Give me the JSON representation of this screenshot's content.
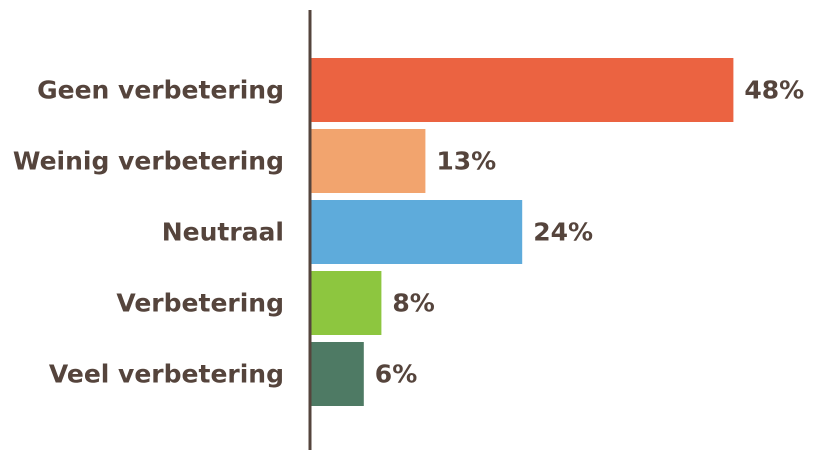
{
  "chart_data": {
    "type": "bar",
    "orientation": "horizontal",
    "categories": [
      "Geen verbetering",
      "Weinig verbetering",
      "Neutraal",
      "Verbetering",
      "Veel verbetering"
    ],
    "values": [
      48,
      13,
      24,
      8,
      6
    ],
    "value_labels": [
      "48%",
      "13%",
      "24%",
      "8%",
      "6%"
    ],
    "colors": [
      "#eb6341",
      "#f2a46e",
      "#5eabdb",
      "#8dc63f",
      "#4e7a64"
    ],
    "axis_color": "#55443c",
    "text_color": "#55443c",
    "title": "",
    "xlabel": "",
    "ylabel": "",
    "grid": false,
    "legend": false
  }
}
